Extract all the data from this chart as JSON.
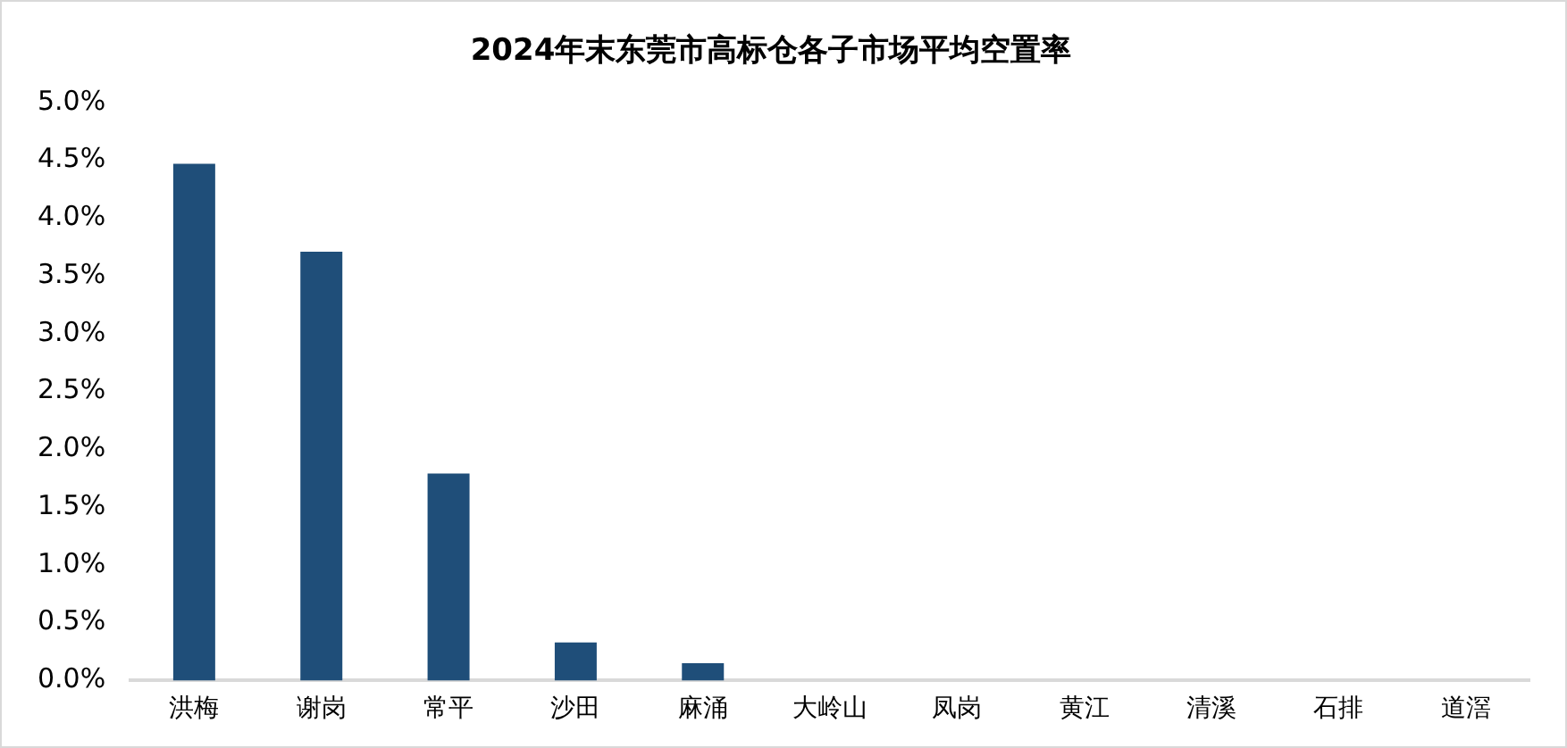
{
  "chart_data": {
    "type": "bar",
    "title": "2024年末东莞市高标仓各子市场平均空置率",
    "categories": [
      "洪梅",
      "谢岗",
      "常平",
      "沙田",
      "麻涌",
      "大岭山",
      "凤岗",
      "黄江",
      "清溪",
      "石排",
      "道滘"
    ],
    "values": [
      4.47,
      3.71,
      1.79,
      0.33,
      0.15,
      0,
      0,
      0,
      0,
      0,
      0
    ],
    "color": "#1f4e79",
    "ylim": [
      0,
      5
    ],
    "yticks": [
      {
        "value": 0,
        "label": "0.0%"
      },
      {
        "value": 0.5,
        "label": "0.5%"
      },
      {
        "value": 1,
        "label": "1.0%"
      },
      {
        "value": 1.5,
        "label": "1.5%"
      },
      {
        "value": 2,
        "label": "2.0%"
      },
      {
        "value": 2.5,
        "label": "2.5%"
      },
      {
        "value": 3,
        "label": "3.0%"
      },
      {
        "value": 3.5,
        "label": "3.5%"
      },
      {
        "value": 4,
        "label": "4.0%"
      },
      {
        "value": 4.5,
        "label": "4.5%"
      },
      {
        "value": 5,
        "label": "5.0%"
      }
    ],
    "grid": false,
    "legend": false
  }
}
